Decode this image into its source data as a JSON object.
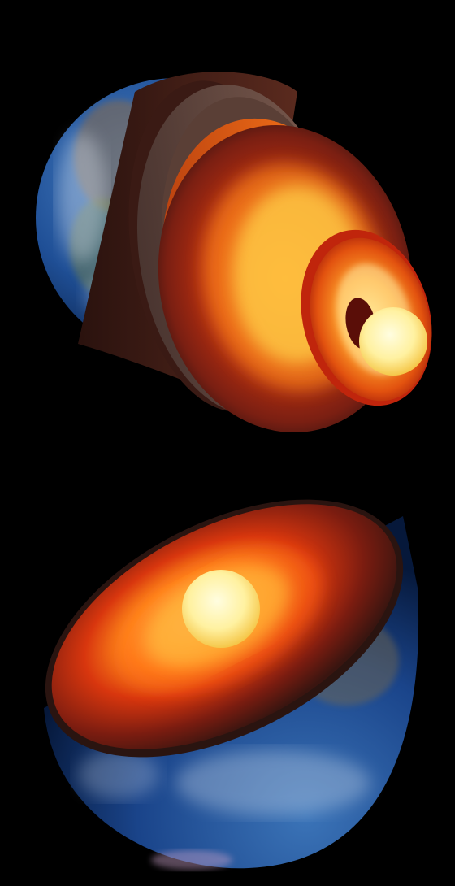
{
  "scene": {
    "background": "#000000",
    "subjects": [
      {
        "name": "exploded-earth-layers",
        "layers": [
          "surface",
          "crust",
          "upper-mantle",
          "lower-mantle",
          "outer-core",
          "inner-core"
        ]
      },
      {
        "name": "earth-hemisphere-cross-section",
        "layers": [
          "surface",
          "crust",
          "mantle",
          "outer-core",
          "inner-core"
        ]
      }
    ],
    "colors": {
      "ocean": "#1f4f96",
      "ocean_deep": "#0b2350",
      "land": "#8a6a4a",
      "cloud": "#e8eef5",
      "crust": "#4a2218",
      "mantle_rock": "#6b3a2c",
      "mantle_hot": "#c4310f",
      "outer_core": "#ff7a12",
      "outer_core_glow": "#ffc23a",
      "inner_core": "#fff6b0"
    }
  }
}
